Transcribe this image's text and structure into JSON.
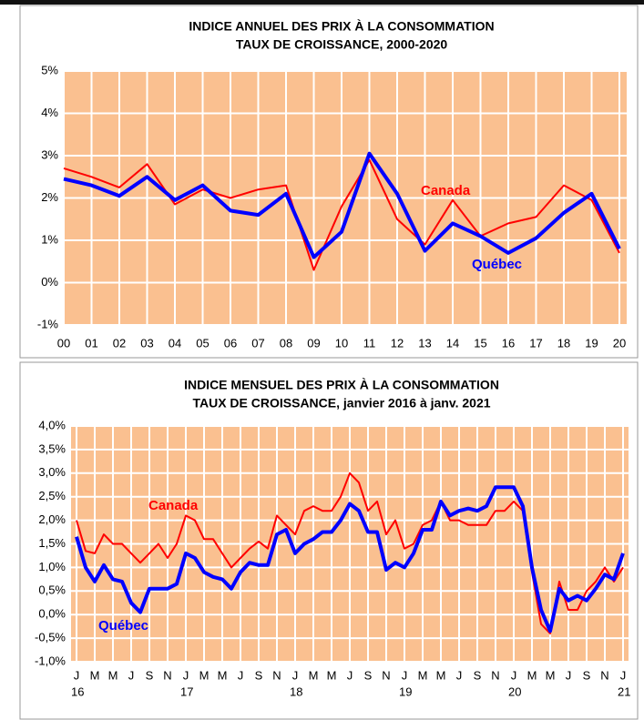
{
  "chart_data": [
    {
      "type": "line",
      "title": "INDICE ANNUEL DES PRIX À LA CONSOMMATION",
      "subtitle": "TAUX DE CROISSANCE, 2000-2020",
      "categories": [
        "00",
        "01",
        "02",
        "03",
        "04",
        "05",
        "06",
        "07",
        "08",
        "09",
        "10",
        "11",
        "12",
        "13",
        "14",
        "15",
        "16",
        "17",
        "18",
        "19",
        "20"
      ],
      "series": [
        {
          "name": "Canada",
          "color": "#ff0000",
          "values": [
            2.7,
            2.5,
            2.25,
            2.8,
            1.85,
            2.2,
            2.0,
            2.2,
            2.3,
            0.3,
            1.8,
            2.9,
            1.5,
            0.9,
            1.95,
            1.1,
            1.4,
            1.55,
            2.3,
            1.95,
            0.7
          ]
        },
        {
          "name": "Québec",
          "color": "#0000ff",
          "values": [
            2.45,
            2.3,
            2.05,
            2.5,
            1.95,
            2.3,
            1.7,
            1.6,
            2.1,
            0.6,
            1.2,
            3.05,
            2.1,
            0.75,
            1.4,
            1.1,
            0.7,
            1.05,
            1.65,
            2.1,
            0.8
          ]
        }
      ],
      "ylim": [
        -1,
        5
      ],
      "yticks": [
        {
          "value": -1,
          "label": "-1%"
        },
        {
          "value": 0,
          "label": "0%"
        },
        {
          "value": 1,
          "label": "1%"
        },
        {
          "value": 2,
          "label": "2%"
        },
        {
          "value": 3,
          "label": "3%"
        },
        {
          "value": 4,
          "label": "4%"
        },
        {
          "value": 5,
          "label": "5%"
        }
      ],
      "grid": true,
      "background": "#fac090"
    },
    {
      "type": "line",
      "title": "INDICE MENSUEL DES PRIX À LA CONSOMMATION",
      "subtitle": "TAUX DE CROISSANCE, janvier 2016 à janv. 2021",
      "categories": [
        "J",
        null,
        "M",
        null,
        "M",
        null,
        "J",
        null,
        "S",
        null,
        "N",
        null,
        "J",
        null,
        "M",
        null,
        "M",
        null,
        "J",
        null,
        "S",
        null,
        "N",
        null,
        "J",
        null,
        "M",
        null,
        "M",
        null,
        "J",
        null,
        "S",
        null,
        "N",
        null,
        "J",
        null,
        "M",
        null,
        "M",
        null,
        "J",
        null,
        "S",
        null,
        "N",
        null,
        "J",
        null,
        "M",
        null,
        "M",
        null,
        "J",
        null,
        "S",
        null,
        "N",
        null,
        "J"
      ],
      "year_labels": [
        "16",
        "17",
        "18",
        "19",
        "20",
        "21"
      ],
      "series": [
        {
          "name": "Canada",
          "color": "#ff0000",
          "values": [
            2.0,
            1.35,
            1.3,
            1.7,
            1.5,
            1.5,
            1.3,
            1.1,
            1.3,
            1.5,
            1.2,
            1.5,
            2.1,
            2.0,
            1.6,
            1.6,
            1.3,
            1.0,
            1.2,
            1.4,
            1.55,
            1.4,
            2.1,
            1.9,
            1.7,
            2.2,
            2.3,
            2.2,
            2.2,
            2.5,
            3.0,
            2.8,
            2.2,
            2.4,
            1.7,
            2.0,
            1.4,
            1.5,
            1.9,
            2.0,
            2.4,
            2.0,
            2.0,
            1.9,
            1.9,
            1.9,
            2.2,
            2.2,
            2.4,
            2.2,
            0.9,
            -0.2,
            -0.4,
            0.7,
            0.1,
            0.1,
            0.5,
            0.7,
            1.0,
            0.7,
            1.0
          ]
        },
        {
          "name": "Québec",
          "color": "#0000ff",
          "values": [
            1.65,
            1.0,
            0.7,
            1.05,
            0.75,
            0.7,
            0.25,
            0.05,
            0.55,
            0.55,
            0.55,
            0.65,
            1.3,
            1.2,
            0.9,
            0.8,
            0.75,
            0.55,
            0.9,
            1.1,
            1.05,
            1.05,
            1.7,
            1.8,
            1.3,
            1.5,
            1.6,
            1.75,
            1.75,
            2.0,
            2.35,
            2.2,
            1.75,
            1.75,
            0.95,
            1.1,
            1.0,
            1.3,
            1.8,
            1.8,
            2.4,
            2.1,
            2.2,
            2.25,
            2.2,
            2.3,
            2.7,
            2.7,
            2.7,
            2.3,
            1.0,
            0.1,
            -0.35,
            0.55,
            0.3,
            0.4,
            0.3,
            0.55,
            0.85,
            0.75,
            1.3
          ]
        }
      ],
      "ylim": [
        -1,
        4
      ],
      "yticks": [
        {
          "value": -1,
          "label": "-1,0%"
        },
        {
          "value": -0.5,
          "label": "-0,5%"
        },
        {
          "value": 0,
          "label": "0,0%"
        },
        {
          "value": 0.5,
          "label": "0,5%"
        },
        {
          "value": 1,
          "label": "1,0%"
        },
        {
          "value": 1.5,
          "label": "1,5%"
        },
        {
          "value": 2,
          "label": "2,0%"
        },
        {
          "value": 2.5,
          "label": "2,5%"
        },
        {
          "value": 3,
          "label": "3,0%"
        },
        {
          "value": 3.5,
          "label": "3,5%"
        },
        {
          "value": 4,
          "label": "4,0%"
        }
      ],
      "grid": true,
      "background": "#fac090"
    }
  ]
}
